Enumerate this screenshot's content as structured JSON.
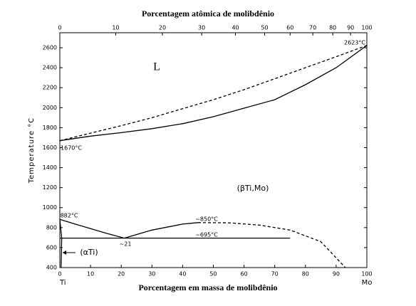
{
  "chart_data": {
    "type": "line",
    "title": "Porcentagem atômica de molibdênio",
    "xlabel": "Porcentagem em massa de molibdênio",
    "ylabel": "Temperature °C",
    "x_end_labels": [
      "Ti",
      "Mo"
    ],
    "xlim": [
      0,
      100
    ],
    "xticks": [
      0,
      10,
      20,
      30,
      40,
      50,
      60,
      70,
      80,
      90,
      100
    ],
    "x2ticks": [
      {
        "value": 0,
        "label": "0"
      },
      {
        "value": 18.2,
        "label": "10"
      },
      {
        "value": 33.4,
        "label": "20"
      },
      {
        "value": 46.2,
        "label": "30"
      },
      {
        "value": 57.2,
        "label": "40"
      },
      {
        "value": 66.7,
        "label": "50"
      },
      {
        "value": 75,
        "label": "60"
      },
      {
        "value": 82.4,
        "label": "70"
      },
      {
        "value": 88.9,
        "label": "80"
      },
      {
        "value": 94.7,
        "label": "90"
      },
      {
        "value": 100,
        "label": "100"
      }
    ],
    "ylim": [
      400,
      2750
    ],
    "yticks": [
      400,
      600,
      800,
      1000,
      1200,
      1400,
      1600,
      1800,
      2000,
      2200,
      2400,
      2600
    ],
    "series": [
      {
        "color": "#000000",
        "dashed": false,
        "x": [
          0,
          10,
          20,
          30,
          40,
          50,
          60,
          70,
          80,
          90,
          100
        ],
        "values": [
          1670,
          1715,
          1750,
          1790,
          1840,
          1910,
          1995,
          2080,
          2230,
          2400,
          2623
        ]
      },
      {
        "color": "#000000",
        "dashed": true,
        "x": [
          0,
          10,
          20,
          30,
          40,
          50,
          60,
          70,
          80,
          90,
          100
        ],
        "values": [
          1670,
          1745,
          1820,
          1900,
          1990,
          2080,
          2180,
          2290,
          2400,
          2510,
          2623
        ]
      },
      {
        "color": "#000000",
        "dashed": false,
        "x": [
          0,
          5,
          10,
          15,
          21
        ],
        "values": [
          882,
          835,
          790,
          745,
          695
        ]
      },
      {
        "color": "#000000",
        "dashed": false,
        "x": [
          21,
          30,
          40,
          45
        ],
        "values": [
          695,
          775,
          835,
          850
        ]
      },
      {
        "color": "#000000",
        "dashed": true,
        "x": [
          45,
          55,
          65,
          75,
          85,
          93
        ],
        "values": [
          850,
          848,
          825,
          775,
          660,
          400
        ]
      },
      {
        "color": "#000000",
        "dashed": false,
        "x": [
          0,
          75
        ],
        "values": [
          695,
          695
        ]
      },
      {
        "color": "#000000",
        "dashed": false,
        "x": [
          0,
          0.6,
          0.4
        ],
        "values": [
          882,
          695,
          400
        ]
      }
    ],
    "annotations": [
      "L",
      "(βTi,Mo)",
      "(αTi)",
      "1670°C",
      "2623°C",
      "882°C",
      "~850°C",
      "~695°C",
      "~21"
    ]
  }
}
